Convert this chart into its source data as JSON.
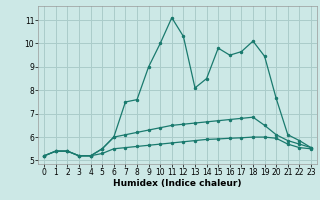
{
  "xlabel": "Humidex (Indice chaleur)",
  "background_color": "#cce8e6",
  "grid_color": "#aaccca",
  "line_color": "#1a7a6e",
  "xlim": [
    -0.5,
    23.5
  ],
  "ylim": [
    4.85,
    11.6
  ],
  "yticks": [
    5,
    6,
    7,
    8,
    9,
    10,
    11
  ],
  "xticks": [
    0,
    1,
    2,
    3,
    4,
    5,
    6,
    7,
    8,
    9,
    10,
    11,
    12,
    13,
    14,
    15,
    16,
    17,
    18,
    19,
    20,
    21,
    22,
    23
  ],
  "series": [
    {
      "x": [
        0,
        1,
        2,
        3,
        4,
        5,
        6,
        7,
        8,
        9,
        10,
        11,
        12,
        13,
        14,
        15,
        16,
        17,
        18,
        19,
        20,
        21,
        22,
        23
      ],
      "y": [
        5.2,
        5.4,
        5.4,
        5.2,
        5.2,
        5.3,
        5.5,
        5.55,
        5.6,
        5.65,
        5.7,
        5.75,
        5.8,
        5.85,
        5.9,
        5.92,
        5.95,
        5.97,
        6.0,
        6.0,
        5.95,
        5.7,
        5.55,
        5.5
      ],
      "marker": ".",
      "linestyle": "-",
      "markersize": 3
    },
    {
      "x": [
        0,
        1,
        2,
        3,
        4,
        5,
        6,
        7,
        8,
        9,
        10,
        11,
        12,
        13,
        14,
        15,
        16,
        17,
        18,
        19,
        20,
        21,
        22,
        23
      ],
      "y": [
        5.2,
        5.4,
        5.4,
        5.2,
        5.2,
        5.5,
        6.0,
        6.1,
        6.2,
        6.3,
        6.4,
        6.5,
        6.55,
        6.6,
        6.65,
        6.7,
        6.75,
        6.8,
        6.85,
        6.5,
        6.1,
        5.85,
        5.7,
        5.55
      ],
      "marker": ".",
      "linestyle": "-",
      "markersize": 3
    },
    {
      "x": [
        0,
        1,
        2,
        3,
        4,
        5,
        6,
        7,
        8,
        9,
        10,
        11,
        12,
        13,
        14,
        15,
        16,
        17,
        18,
        19,
        20,
        21,
        22,
        23
      ],
      "y": [
        5.2,
        5.4,
        5.4,
        5.2,
        5.2,
        5.5,
        6.0,
        7.5,
        7.6,
        9.0,
        10.0,
        11.1,
        10.3,
        8.1,
        8.5,
        9.8,
        9.5,
        9.65,
        10.1,
        9.45,
        7.65,
        6.1,
        5.85,
        5.55
      ],
      "marker": ".",
      "linestyle": "-",
      "markersize": 3
    }
  ]
}
